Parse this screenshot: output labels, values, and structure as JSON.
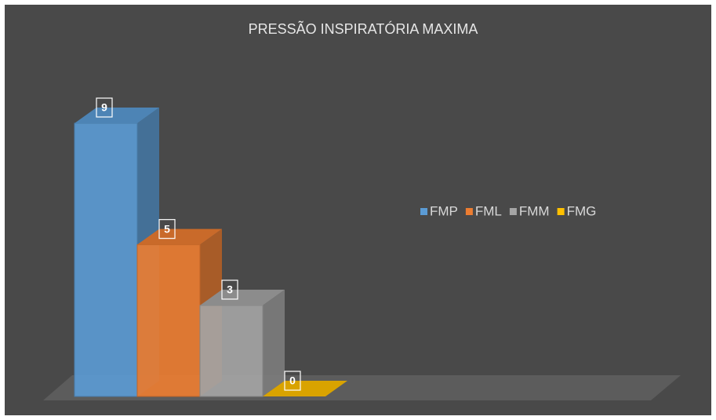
{
  "chart_data": {
    "type": "bar3d",
    "title": "PRESSÃO INSPIRATÓRIA MAXIMA",
    "series": [
      {
        "name": "FMP",
        "color": "#5b9bd5",
        "values": [
          9
        ]
      },
      {
        "name": "FML",
        "color": "#ed7d31",
        "values": [
          5
        ]
      },
      {
        "name": "FMM",
        "color": "#a5a5a5",
        "values": [
          3
        ]
      },
      {
        "name": "FMG",
        "color": "#ffc000",
        "values": [
          0
        ]
      }
    ],
    "legend": "right"
  }
}
